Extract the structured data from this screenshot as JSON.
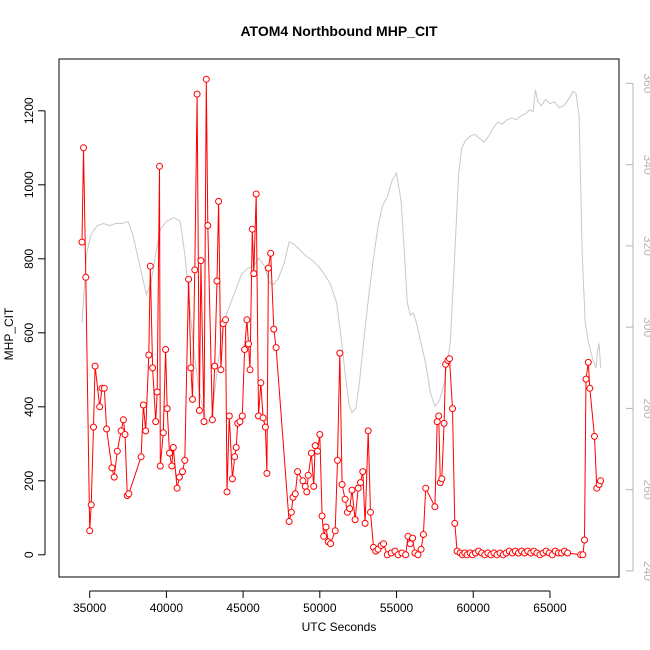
{
  "chart_data": {
    "type": "line",
    "title": "ATOM4 Northbound MHP_CIT",
    "xlabel": "UTC Seconds",
    "ylabel": "MHP_CIT",
    "xlim": [
      33000,
      69500
    ],
    "ylim": [
      -60,
      1340
    ],
    "y2lim": [
      238.5,
      366
    ],
    "x_ticks": [
      35000,
      40000,
      45000,
      50000,
      55000,
      60000,
      65000
    ],
    "y_ticks": [
      0,
      200,
      400,
      600,
      800,
      1000,
      1200
    ],
    "y2_ticks": [
      240,
      260,
      280,
      300,
      320,
      340,
      360
    ],
    "series": [
      {
        "role": "primary",
        "color": "#ff0000",
        "marker": "open-circle",
        "points": [
          [
            34500,
            845
          ],
          [
            34600,
            1100
          ],
          [
            34750,
            750
          ],
          [
            35000,
            65
          ],
          [
            35100,
            135
          ],
          [
            35250,
            345
          ],
          [
            35350,
            510
          ],
          [
            35650,
            400
          ],
          [
            35800,
            450
          ],
          [
            35950,
            450
          ],
          [
            36100,
            340
          ],
          [
            36450,
            235
          ],
          [
            36600,
            210
          ],
          [
            36800,
            280
          ],
          [
            37050,
            335
          ],
          [
            37200,
            365
          ],
          [
            37300,
            325
          ],
          [
            37450,
            160
          ],
          [
            37550,
            165
          ],
          [
            38350,
            265
          ],
          [
            38500,
            405
          ],
          [
            38650,
            335
          ],
          [
            38850,
            540
          ],
          [
            38950,
            780
          ],
          [
            39100,
            505
          ],
          [
            39300,
            360
          ],
          [
            39400,
            440
          ],
          [
            39550,
            1050
          ],
          [
            39600,
            240
          ],
          [
            39800,
            330
          ],
          [
            39950,
            555
          ],
          [
            40050,
            395
          ],
          [
            40200,
            275
          ],
          [
            40350,
            240
          ],
          [
            40450,
            290
          ],
          [
            40700,
            180
          ],
          [
            40850,
            210
          ],
          [
            41050,
            225
          ],
          [
            41200,
            255
          ],
          [
            41450,
            745
          ],
          [
            41600,
            505
          ],
          [
            41700,
            420
          ],
          [
            41850,
            770
          ],
          [
            42000,
            1245
          ],
          [
            42150,
            390
          ],
          [
            42250,
            795
          ],
          [
            42450,
            360
          ],
          [
            42600,
            1285
          ],
          [
            42700,
            890
          ],
          [
            43000,
            365
          ],
          [
            43150,
            510
          ],
          [
            43300,
            740
          ],
          [
            43400,
            955
          ],
          [
            43550,
            500
          ],
          [
            43700,
            625
          ],
          [
            43850,
            635
          ],
          [
            43950,
            170
          ],
          [
            44100,
            375
          ],
          [
            44300,
            205
          ],
          [
            44450,
            265
          ],
          [
            44550,
            290
          ],
          [
            44650,
            355
          ],
          [
            44800,
            360
          ],
          [
            44950,
            375
          ],
          [
            45100,
            555
          ],
          [
            45250,
            635
          ],
          [
            45350,
            570
          ],
          [
            45450,
            500
          ],
          [
            45600,
            880
          ],
          [
            45700,
            760
          ],
          [
            45850,
            975
          ],
          [
            46000,
            375
          ],
          [
            46150,
            465
          ],
          [
            46300,
            370
          ],
          [
            46450,
            345
          ],
          [
            46550,
            220
          ],
          [
            46650,
            775
          ],
          [
            46800,
            815
          ],
          [
            47000,
            610
          ],
          [
            47150,
            560
          ],
          [
            48000,
            90
          ],
          [
            48150,
            115
          ],
          [
            48250,
            155
          ],
          [
            48400,
            165
          ],
          [
            48550,
            225
          ],
          [
            48900,
            200
          ],
          [
            49050,
            185
          ],
          [
            49150,
            170
          ],
          [
            49250,
            215
          ],
          [
            49450,
            275
          ],
          [
            49600,
            185
          ],
          [
            49700,
            295
          ],
          [
            49850,
            280
          ],
          [
            50000,
            325
          ],
          [
            50150,
            105
          ],
          [
            50250,
            50
          ],
          [
            50400,
            75
          ],
          [
            50550,
            35
          ],
          [
            50700,
            30
          ],
          [
            51000,
            65
          ],
          [
            51150,
            255
          ],
          [
            51300,
            545
          ],
          [
            51450,
            190
          ],
          [
            51650,
            150
          ],
          [
            51800,
            115
          ],
          [
            51950,
            125
          ],
          [
            52100,
            175
          ],
          [
            52300,
            95
          ],
          [
            52500,
            180
          ],
          [
            52650,
            195
          ],
          [
            52800,
            225
          ],
          [
            52950,
            85
          ],
          [
            53150,
            335
          ],
          [
            53300,
            115
          ],
          [
            53500,
            20
          ],
          [
            53650,
            10
          ],
          [
            53800,
            15
          ],
          [
            54000,
            25
          ],
          [
            54150,
            30
          ],
          [
            54400,
            0
          ],
          [
            54650,
            5
          ],
          [
            54900,
            10
          ],
          [
            55100,
            0
          ],
          [
            55350,
            5
          ],
          [
            55600,
            0
          ],
          [
            55750,
            50
          ],
          [
            55900,
            30
          ],
          [
            56050,
            45
          ],
          [
            56200,
            5
          ],
          [
            56400,
            0
          ],
          [
            56600,
            15
          ],
          [
            56750,
            55
          ],
          [
            56900,
            180
          ],
          [
            57500,
            130
          ],
          [
            57650,
            360
          ],
          [
            57750,
            375
          ],
          [
            57850,
            195
          ],
          [
            57950,
            205
          ],
          [
            58100,
            355
          ],
          [
            58200,
            515
          ],
          [
            58350,
            525
          ],
          [
            58450,
            530
          ],
          [
            58650,
            395
          ],
          [
            58800,
            85
          ],
          [
            58950,
            10
          ],
          [
            59150,
            5
          ],
          [
            59300,
            0
          ],
          [
            59450,
            5
          ],
          [
            59600,
            0
          ],
          [
            59800,
            5
          ],
          [
            59950,
            0
          ],
          [
            60150,
            5
          ],
          [
            60350,
            10
          ],
          [
            60550,
            5
          ],
          [
            60750,
            0
          ],
          [
            60950,
            5
          ],
          [
            61150,
            0
          ],
          [
            61350,
            5
          ],
          [
            61550,
            0
          ],
          [
            61750,
            5
          ],
          [
            61950,
            0
          ],
          [
            62150,
            5
          ],
          [
            62350,
            10
          ],
          [
            62550,
            5
          ],
          [
            62750,
            10
          ],
          [
            62950,
            5
          ],
          [
            63150,
            10
          ],
          [
            63350,
            5
          ],
          [
            63550,
            10
          ],
          [
            63750,
            5
          ],
          [
            63950,
            10
          ],
          [
            64150,
            5
          ],
          [
            64350,
            0
          ],
          [
            64550,
            5
          ],
          [
            64750,
            10
          ],
          [
            64950,
            5
          ],
          [
            65150,
            0
          ],
          [
            65350,
            10
          ],
          [
            65550,
            5
          ],
          [
            65750,
            5
          ],
          [
            65950,
            10
          ],
          [
            66150,
            5
          ],
          [
            67000,
            0
          ],
          [
            67150,
            0
          ],
          [
            67250,
            40
          ],
          [
            67350,
            475
          ],
          [
            67500,
            520
          ],
          [
            67600,
            450
          ],
          [
            67900,
            320
          ],
          [
            68050,
            180
          ],
          [
            68200,
            190
          ],
          [
            68300,
            200
          ]
        ]
      },
      {
        "role": "secondary",
        "color": "#c8c8c8",
        "marker": "none",
        "points": [
          [
            34500,
            301
          ],
          [
            34800,
            318
          ],
          [
            35100,
            323
          ],
          [
            35500,
            325
          ],
          [
            35900,
            325.5
          ],
          [
            36300,
            325
          ],
          [
            36700,
            325.5
          ],
          [
            37100,
            325.5
          ],
          [
            37500,
            326
          ],
          [
            37800,
            323
          ],
          [
            38100,
            318
          ],
          [
            38400,
            313
          ],
          [
            38700,
            308
          ],
          [
            39000,
            311
          ],
          [
            39300,
            318
          ],
          [
            39600,
            324
          ],
          [
            40000,
            326
          ],
          [
            40500,
            327
          ],
          [
            40900,
            326
          ],
          [
            41200,
            318
          ],
          [
            41500,
            306
          ],
          [
            41800,
            294
          ],
          [
            42100,
            285
          ],
          [
            42400,
            280
          ],
          [
            42700,
            276
          ],
          [
            43000,
            279
          ],
          [
            43300,
            289
          ],
          [
            43600,
            298
          ],
          [
            43800,
            302
          ],
          [
            44100,
            305
          ],
          [
            44500,
            309
          ],
          [
            44900,
            313
          ],
          [
            45300,
            314.5
          ],
          [
            45700,
            315
          ],
          [
            46000,
            317
          ],
          [
            46400,
            315
          ],
          [
            46700,
            311
          ],
          [
            47000,
            310.5
          ],
          [
            47300,
            312
          ],
          [
            47700,
            316
          ],
          [
            48000,
            321
          ],
          [
            48300,
            320.5
          ],
          [
            48700,
            319
          ],
          [
            49100,
            317.5
          ],
          [
            49500,
            316.5
          ],
          [
            49900,
            315
          ],
          [
            50300,
            313
          ],
          [
            50700,
            310.5
          ],
          [
            51100,
            306
          ],
          [
            51400,
            297
          ],
          [
            51700,
            287
          ],
          [
            51900,
            281
          ],
          [
            52100,
            279
          ],
          [
            52350,
            280
          ],
          [
            52600,
            287
          ],
          [
            52900,
            298
          ],
          [
            53200,
            308
          ],
          [
            53500,
            317
          ],
          [
            53800,
            325
          ],
          [
            54100,
            330
          ],
          [
            54400,
            332
          ],
          [
            54700,
            336
          ],
          [
            55000,
            338
          ],
          [
            55300,
            331
          ],
          [
            55500,
            319
          ],
          [
            55700,
            306
          ],
          [
            55900,
            303
          ],
          [
            56100,
            303.5
          ],
          [
            56300,
            301
          ],
          [
            56600,
            296
          ],
          [
            56900,
            291
          ],
          [
            57200,
            284
          ],
          [
            57500,
            280.5
          ],
          [
            57800,
            282
          ],
          [
            58100,
            286
          ],
          [
            58500,
            296
          ],
          [
            58800,
            318
          ],
          [
            59050,
            338
          ],
          [
            59250,
            344
          ],
          [
            59500,
            346
          ],
          [
            59800,
            347
          ],
          [
            60100,
            347.5
          ],
          [
            60400,
            346.5
          ],
          [
            60700,
            345.5
          ],
          [
            61000,
            347
          ],
          [
            61300,
            349
          ],
          [
            61600,
            350.5
          ],
          [
            61900,
            350
          ],
          [
            62200,
            351
          ],
          [
            62500,
            351.5
          ],
          [
            62800,
            351
          ],
          [
            63100,
            352
          ],
          [
            63400,
            352.5
          ],
          [
            63700,
            353.5
          ],
          [
            63900,
            353
          ],
          [
            64050,
            358.5
          ],
          [
            64200,
            355.5
          ],
          [
            64450,
            354.5
          ],
          [
            64700,
            356
          ],
          [
            65000,
            355
          ],
          [
            65300,
            355.5
          ],
          [
            65600,
            354
          ],
          [
            65900,
            354.5
          ],
          [
            66200,
            356
          ],
          [
            66500,
            358
          ],
          [
            66700,
            357.5
          ],
          [
            66900,
            352
          ],
          [
            67100,
            318
          ],
          [
            67300,
            301
          ],
          [
            67500,
            296.5
          ],
          [
            67800,
            292
          ],
          [
            68000,
            290
          ],
          [
            68100,
            294
          ],
          [
            68200,
            296
          ],
          [
            68300,
            290
          ]
        ]
      }
    ]
  }
}
